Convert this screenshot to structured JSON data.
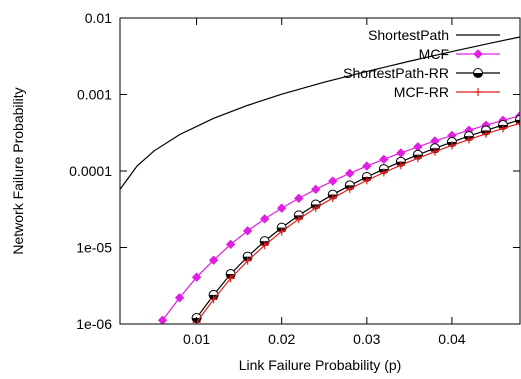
{
  "chart_data": {
    "type": "line",
    "xlabel": "Link Failure Probability (p)",
    "ylabel": "Network Failure Probability",
    "xlim": [
      0.001,
      0.048
    ],
    "ylim": [
      1e-06,
      0.01
    ],
    "yscale": "log",
    "grid": false,
    "legend_position": "top-right",
    "x_ticks": [
      {
        "value": 0.01,
        "label": "0.01"
      },
      {
        "value": 0.02,
        "label": "0.02"
      },
      {
        "value": 0.03,
        "label": "0.03"
      },
      {
        "value": 0.04,
        "label": "0.04"
      }
    ],
    "y_ticks": [
      {
        "value": 1e-06,
        "label": "1e-06"
      },
      {
        "value": 1e-05,
        "label": "1e-05"
      },
      {
        "value": 0.0001,
        "label": "0.0001"
      },
      {
        "value": 0.001,
        "label": "0.001"
      },
      {
        "value": 0.01,
        "label": "0.01"
      }
    ],
    "series": [
      {
        "name": "ShortestPath",
        "color": "#000000",
        "marker": "none",
        "x": [
          0.001,
          0.003,
          0.005,
          0.008,
          0.012,
          0.016,
          0.02,
          0.025,
          0.03,
          0.035,
          0.04,
          0.045,
          0.048
        ],
        "y": [
          5.75e-05,
          0.000116,
          0.000183,
          0.000299,
          0.000488,
          0.000721,
          0.00101,
          0.00145,
          0.002,
          0.00272,
          0.00364,
          0.00481,
          0.00565
        ]
      },
      {
        "name": "MCF",
        "color": "#e020e0",
        "marker": "diamond",
        "x": [
          0.006,
          0.008,
          0.01,
          0.012,
          0.014,
          0.016,
          0.018,
          0.02,
          0.022,
          0.024,
          0.026,
          0.028,
          0.03,
          0.032,
          0.034,
          0.036,
          0.038,
          0.04,
          0.042,
          0.044,
          0.046,
          0.048
        ],
        "y": [
          1.12e-06,
          2.2e-06,
          4.09e-06,
          6.83e-06,
          1.1e-05,
          1.65e-05,
          2.37e-05,
          3.27e-05,
          4.39e-05,
          5.76e-05,
          7.39e-05,
          9.32e-05,
          0.000116,
          0.000142,
          0.000172,
          0.000207,
          0.000247,
          0.000291,
          0.000341,
          0.000397,
          0.000459,
          0.000528
        ]
      },
      {
        "name": "ShortestPath-RR",
        "color": "#000000",
        "marker": "half-circle",
        "x": [
          0.01,
          0.012,
          0.014,
          0.016,
          0.018,
          0.02,
          0.022,
          0.024,
          0.026,
          0.028,
          0.03,
          0.032,
          0.034,
          0.036,
          0.038,
          0.04,
          0.042,
          0.044,
          0.046,
          0.048
        ],
        "y": [
          1.2e-06,
          2.4e-06,
          4.5e-06,
          7.6e-06,
          1.21e-05,
          1.82e-05,
          2.63e-05,
          3.65e-05,
          4.92e-05,
          6.48e-05,
          8.35e-05,
          0.000106,
          0.000132,
          0.000163,
          0.000198,
          0.000239,
          0.000286,
          0.000339,
          0.000399,
          0.000466
        ]
      },
      {
        "name": "MCF-RR",
        "color": "#e02020",
        "marker": "plus",
        "x": [
          0.01,
          0.012,
          0.014,
          0.016,
          0.018,
          0.02,
          0.022,
          0.024,
          0.026,
          0.028,
          0.03,
          0.032,
          0.034,
          0.036,
          0.038,
          0.04,
          0.042,
          0.044,
          0.046,
          0.048
        ],
        "y": [
          1.05e-06,
          2.1e-06,
          3.95e-06,
          6.7e-06,
          1.07e-05,
          1.62e-05,
          2.35e-05,
          3.28e-05,
          4.43e-05,
          5.84e-05,
          7.53e-05,
          9.55e-05,
          0.000119,
          0.000147,
          0.000179,
          0.000216,
          0.000258,
          0.000306,
          0.00036,
          0.00042
        ]
      }
    ]
  }
}
